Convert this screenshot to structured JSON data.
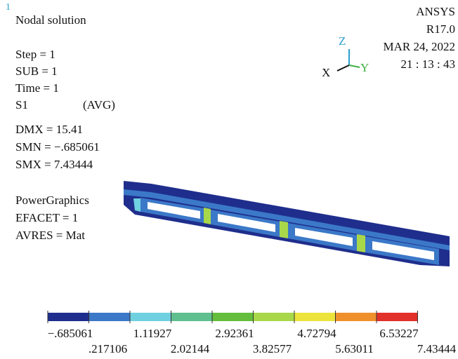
{
  "window_number": "1",
  "title": "Nodal solution",
  "info": [
    "Step = 1",
    "SUB = 1",
    "Time = 1"
  ],
  "result": {
    "name": "S1",
    "avg": "(AVG)"
  },
  "stats": [
    "DMX = 15.41",
    "SMN = −.685061",
    "SMX = 7.43444"
  ],
  "graphics": [
    "PowerGraphics",
    "EFACET = 1",
    "AVRES = Mat"
  ],
  "header": [
    "ANSYS",
    "R17.0",
    "MAR 24, 2022",
    "21 : 13 : 43"
  ],
  "triad": {
    "z": "Z",
    "x": "X",
    "y": "Y"
  },
  "legend": {
    "colors": [
      "#1f2e8c",
      "#3b78c8",
      "#6fd0e0",
      "#5fbf8f",
      "#64bd3c",
      "#a8d84a",
      "#ece43c",
      "#f0902c",
      "#e2302a"
    ],
    "labels_top": [
      "−.685061",
      "1.11927",
      "2.92361",
      "4.72794",
      "6.53227"
    ],
    "labels_bottom": [
      ".217106",
      "2.02144",
      "3.82577",
      "5.63011",
      "7.43444"
    ]
  }
}
